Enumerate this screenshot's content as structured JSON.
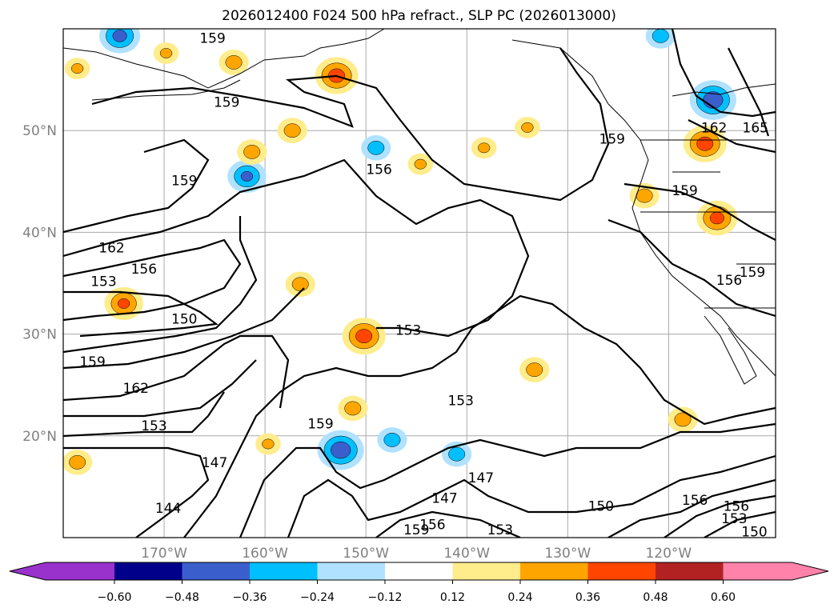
{
  "title": "2026012400 F024 500 hPa refract., SLP PC (2026013000)",
  "chart_data": {
    "type": "map-contour",
    "title": "2026012400 F024 500 hPa refract., SLP PC (2026013000)",
    "lon_range": [
      -180,
      -109.4
    ],
    "lat_range": [
      10,
      60
    ],
    "grid": true,
    "lat_ticks": [
      {
        "value": 50,
        "label": "50°N"
      },
      {
        "value": 40,
        "label": "40°N"
      },
      {
        "value": 30,
        "label": "30°N"
      },
      {
        "value": 20,
        "label": "20°N"
      }
    ],
    "lon_ticks": [
      {
        "value": -170,
        "label": "170°W"
      },
      {
        "value": -160,
        "label": "160°W"
      },
      {
        "value": -150,
        "label": "150°W"
      },
      {
        "value": -140,
        "label": "140°W"
      },
      {
        "value": -130,
        "label": "130°W"
      },
      {
        "value": -120,
        "label": "120°W"
      }
    ],
    "colorbar": {
      "ticks": [
        "-0.60",
        "-0.48",
        "-0.36",
        "-0.24",
        "-0.12",
        "0.12",
        "0.24",
        "0.36",
        "0.48",
        "0.60"
      ],
      "colors": [
        "#9932cc",
        "#00008b",
        "#3a5fcd",
        "#00bfff",
        "#b0e2ff",
        "#ffffff",
        "#ffec8b",
        "#ffa500",
        "#ff4500",
        "#b22222",
        "#ff82ab"
      ],
      "extend": "both"
    },
    "contour_labels": [
      {
        "text": "159",
        "lon": -165.2,
        "lat": 59.1
      },
      {
        "text": "159",
        "lon": -163.8,
        "lat": 52.8
      },
      {
        "text": "159",
        "lon": -168.0,
        "lat": 45.1
      },
      {
        "text": "156",
        "lon": -148.7,
        "lat": 46.2
      },
      {
        "text": "162",
        "lon": -175.2,
        "lat": 38.5
      },
      {
        "text": "156",
        "lon": -172.0,
        "lat": 36.4
      },
      {
        "text": "153",
        "lon": -176.0,
        "lat": 35.2
      },
      {
        "text": "150",
        "lon": -168.0,
        "lat": 31.5
      },
      {
        "text": "153",
        "lon": -145.8,
        "lat": 30.4
      },
      {
        "text": "159",
        "lon": -177.1,
        "lat": 27.3
      },
      {
        "text": "162",
        "lon": -172.8,
        "lat": 24.7
      },
      {
        "text": "153",
        "lon": -171.0,
        "lat": 21.0
      },
      {
        "text": "153",
        "lon": -140.6,
        "lat": 23.5
      },
      {
        "text": "159",
        "lon": -154.5,
        "lat": 21.2
      },
      {
        "text": "147",
        "lon": -165.0,
        "lat": 17.4
      },
      {
        "text": "147",
        "lon": -138.6,
        "lat": 15.9
      },
      {
        "text": "147",
        "lon": -142.2,
        "lat": 13.9
      },
      {
        "text": "144",
        "lon": -169.6,
        "lat": 12.9
      },
      {
        "text": "150",
        "lon": -126.7,
        "lat": 13.1
      },
      {
        "text": "153",
        "lon": -136.7,
        "lat": 10.8
      },
      {
        "text": "156",
        "lon": -143.4,
        "lat": 11.3
      },
      {
        "text": "159",
        "lon": -145.0,
        "lat": 10.8
      },
      {
        "text": "159",
        "lon": -125.6,
        "lat": 49.2
      },
      {
        "text": "162",
        "lon": -115.5,
        "lat": 50.3
      },
      {
        "text": "165",
        "lon": -111.4,
        "lat": 50.3
      },
      {
        "text": "159",
        "lon": -118.4,
        "lat": 44.1
      },
      {
        "text": "156",
        "lon": -114.0,
        "lat": 35.3
      },
      {
        "text": "159",
        "lon": -111.7,
        "lat": 36.1
      },
      {
        "text": "156",
        "lon": -113.3,
        "lat": 13.1
      },
      {
        "text": "153",
        "lon": -113.5,
        "lat": 11.9
      },
      {
        "text": "150",
        "lon": -111.5,
        "lat": 10.6
      },
      {
        "text": "156",
        "lon": -117.4,
        "lat": 13.7
      }
    ],
    "anomalies": [
      {
        "lon": -152.9,
        "lat": 55.4,
        "value": 0.42
      },
      {
        "lon": -116.4,
        "lat": 48.7,
        "value": 0.42
      },
      {
        "lon": -115.2,
        "lat": 41.4,
        "value": 0.4
      },
      {
        "lon": -150.2,
        "lat": 29.8,
        "value": 0.42
      },
      {
        "lon": -156.5,
        "lat": 34.9,
        "value": 0.3
      },
      {
        "lon": -174.0,
        "lat": 33.0,
        "value": 0.38
      },
      {
        "lon": -178.6,
        "lat": 17.4,
        "value": 0.3
      },
      {
        "lon": -149.0,
        "lat": 48.3,
        "value": -0.3
      },
      {
        "lon": -161.8,
        "lat": 45.5,
        "value": -0.38
      },
      {
        "lon": -115.6,
        "lat": 53.0,
        "value": -0.45
      },
      {
        "lon": -120.8,
        "lat": 59.3,
        "value": -0.3
      },
      {
        "lon": -174.4,
        "lat": 59.3,
        "value": -0.4
      },
      {
        "lon": -152.5,
        "lat": 18.6,
        "value": -0.45
      },
      {
        "lon": -147.4,
        "lat": 19.6,
        "value": -0.3
      },
      {
        "lon": -141.0,
        "lat": 18.2,
        "value": -0.3
      },
      {
        "lon": -163.1,
        "lat": 56.7,
        "value": 0.3
      },
      {
        "lon": -161.3,
        "lat": 47.9,
        "value": 0.3
      },
      {
        "lon": -159.7,
        "lat": 19.2,
        "value": 0.26
      },
      {
        "lon": -134.0,
        "lat": 50.3,
        "value": 0.26
      },
      {
        "lon": -144.6,
        "lat": 46.7,
        "value": 0.26
      },
      {
        "lon": -138.3,
        "lat": 48.3,
        "value": 0.26
      },
      {
        "lon": -133.3,
        "lat": 26.5,
        "value": 0.3
      },
      {
        "lon": -118.6,
        "lat": 21.6,
        "value": 0.3
      },
      {
        "lon": -122.4,
        "lat": 43.6,
        "value": 0.3
      },
      {
        "lon": -151.3,
        "lat": 22.7,
        "value": 0.3
      },
      {
        "lon": -169.8,
        "lat": 57.6,
        "value": 0.26
      },
      {
        "lon": -178.6,
        "lat": 56.1,
        "value": 0.26
      },
      {
        "lon": -157.3,
        "lat": 50.0,
        "value": 0.3
      }
    ]
  }
}
